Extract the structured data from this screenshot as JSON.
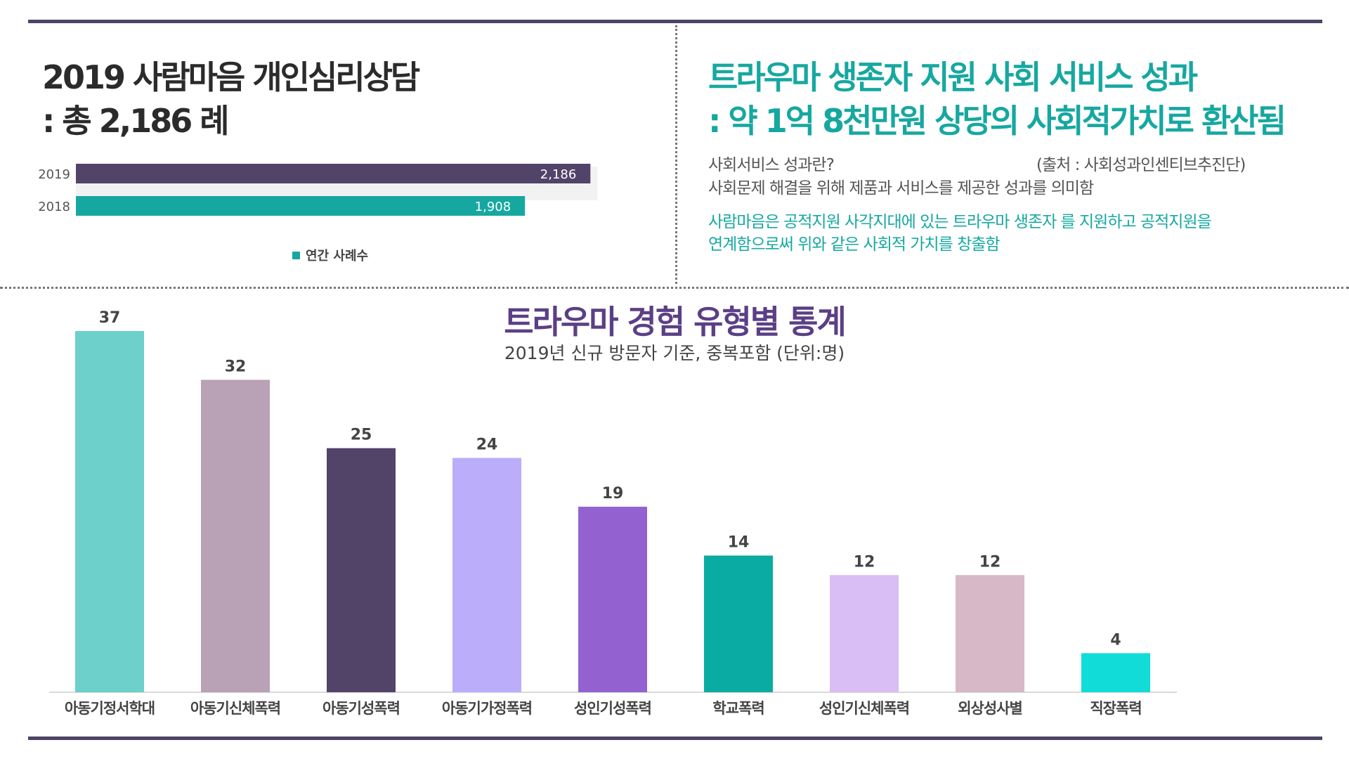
{
  "left_title": {
    "line1": "2019 사람마음 개인심리상담",
    "line2": ": 총 2,186 례"
  },
  "right_title": {
    "line1": "트라우마 생존자 지원 사회 서비스 성과",
    "line2": ": 약 1억 8천만원  상당의 사회적가치로 환산됨"
  },
  "description": {
    "q": "사회서비스 성과란?",
    "source": "(출처 : 사회성과인센티브추진단)",
    "a": "사회문제 해결을 위해 제품과 서비스를 제공한 성과를 의미함",
    "teal1": "사람마음은 공적지원 사각지대에 있는 트라우마 생존자 를 지원하고 공적지원을",
    "teal2": "연계함으로써 위와 같은 사회적 가치를 창출함"
  },
  "colors": {
    "rule": "#4e4466",
    "teal": "#16a8a0",
    "purple_dark": "#524469",
    "title_purple": "#5b3f86"
  },
  "chart_data": [
    {
      "type": "bar",
      "orientation": "horizontal",
      "categories": [
        "2019",
        "2018"
      ],
      "series": [
        {
          "name": "연간 사례수",
          "values": [
            2186,
            1908
          ],
          "labels": [
            "2,186",
            "1,908"
          ]
        }
      ],
      "colors": [
        "#524469",
        "#16a8a0"
      ],
      "xlim": [
        0,
        2200
      ],
      "legend": "bottom"
    },
    {
      "type": "bar",
      "title": "트라우마 경험 유형별 통계",
      "subtitle": "2019년 신규 방문자 기준, 중복포함 (단위:명)",
      "categories": [
        "아동기정서학대",
        "아동기신체폭력",
        "아동기성폭력",
        "아동기가정폭력",
        "성인기성폭력",
        "학교폭력",
        "성인기신체폭력",
        "외상성사별",
        "직장폭력"
      ],
      "values": [
        37,
        32,
        25,
        24,
        19,
        14,
        12,
        12,
        4
      ],
      "colors": [
        "#6dd0cb",
        "#b9a2b5",
        "#524469",
        "#bcadfb",
        "#9362d0",
        "#0aaba2",
        "#d9bdf5",
        "#d7b8c6",
        "#12dcd8"
      ],
      "ylim": [
        0,
        37
      ]
    }
  ]
}
